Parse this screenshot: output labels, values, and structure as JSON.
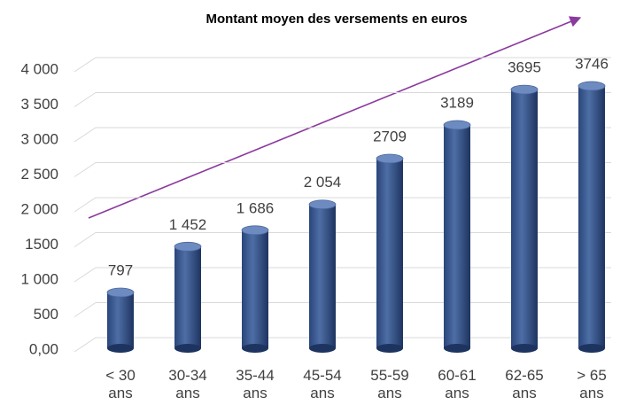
{
  "chart_data": {
    "type": "bar",
    "title": "Montant moyen des versements en euros",
    "categories": [
      "< 30 ans",
      "30-34 ans",
      "35-44 ans",
      "45-54 ans",
      "55-59 ans",
      "60-61 ans",
      "62-65 ans",
      "> 65 ans"
    ],
    "values": [
      797,
      1452,
      1686,
      2054,
      2709,
      3189,
      3695,
      3746
    ],
    "value_labels": [
      "797",
      "1 452",
      "1 686",
      "2 054",
      "2709",
      "3189",
      "3695",
      "3746"
    ],
    "color": "#3b5a91",
    "ylim": [
      0,
      4000
    ],
    "yticks": [
      {
        "value": 0,
        "label": "0,00"
      },
      500,
      {
        "value": 1000,
        "label": "1 000"
      },
      1500,
      {
        "value": 2000,
        "label": "2 000"
      },
      {
        "value": 2500,
        "label": "2 500"
      },
      {
        "value": 3000,
        "label": "3 000"
      },
      {
        "value": 3500,
        "label": "3 500"
      },
      {
        "value": 4000,
        "label": "4 000"
      }
    ],
    "grid": true
  }
}
